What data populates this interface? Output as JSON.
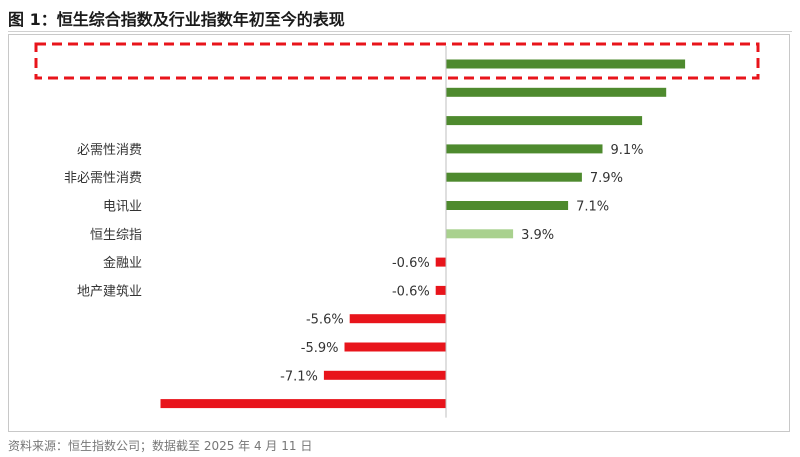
{
  "header": {
    "title": "图 1：恒生综合指数及行业指数年初至今的表现"
  },
  "footer": {
    "source": "资料来源：恒生指数公司；数据截至 2025 年 4 月 11 日"
  },
  "chart_data": {
    "type": "bar",
    "orientation": "horizontal",
    "title": "",
    "xlabel": "",
    "ylabel": "",
    "grid": false,
    "legend": "none",
    "categories": [
      "",
      "",
      "",
      "必需性消费",
      "非必需性消费",
      "电讯业",
      "恒生综指",
      "金融业",
      "地产建筑业",
      "",
      "",
      "",
      ""
    ],
    "values": [
      13.9,
      12.8,
      11.4,
      9.1,
      7.9,
      7.1,
      3.9,
      -0.6,
      -0.6,
      -5.6,
      -5.9,
      -7.1,
      -16.6
    ],
    "value_labels": [
      "",
      "",
      "",
      "9.1%",
      "7.9%",
      "7.1%",
      "3.9%",
      "-0.6%",
      "-0.6%",
      "-5.6%",
      "-5.9%",
      "-7.1%",
      ""
    ],
    "highlighted_index": 0,
    "xlim": [
      -17.5,
      17.5
    ],
    "colors": {
      "positive": "#4e8a2e",
      "benchmark": "#a9d18e",
      "negative": "#e8141b",
      "highlight_box": "#e8141b",
      "axis": "#bfbfbf"
    },
    "benchmark_category": "恒生综指"
  }
}
